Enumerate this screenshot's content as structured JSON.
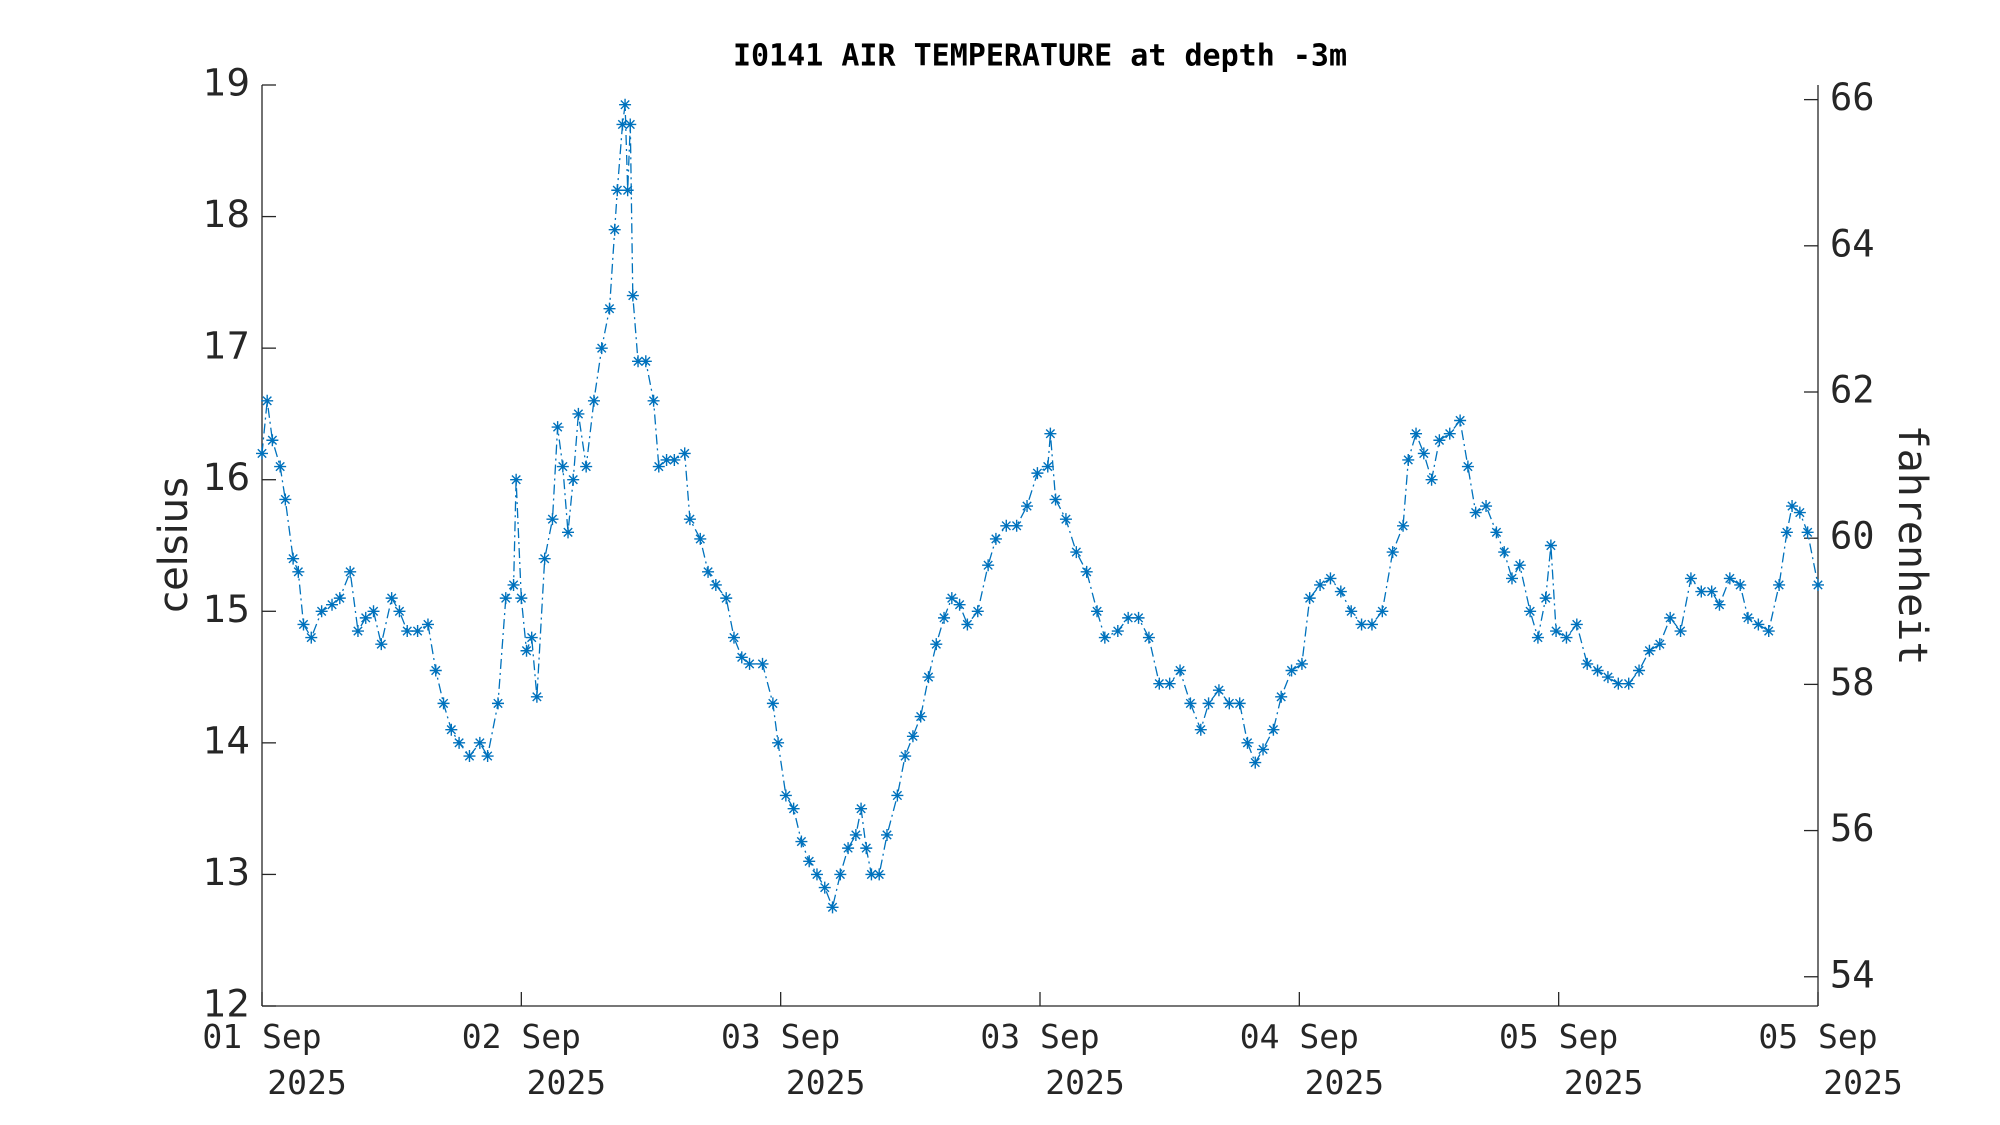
{
  "chart_data": {
    "type": "line",
    "title": "I0141 AIR TEMPERATURE at depth -3m",
    "ylabel": "celsius",
    "y2label": "fahrenheit",
    "xlim": [
      0,
      6
    ],
    "xticks": [
      {
        "value": 0,
        "label": "01 Sep\n2025"
      },
      {
        "value": 1,
        "label": "02 Sep\n2025"
      },
      {
        "value": 2,
        "label": "03 Sep\n2025"
      },
      {
        "value": 3,
        "label": "03 Sep\n2025"
      },
      {
        "value": 4,
        "label": "04 Sep\n2025"
      },
      {
        "value": 5,
        "label": "05 Sep\n2025"
      },
      {
        "value": 6,
        "label": "05 Sep\n2025"
      }
    ],
    "ylim": [
      12,
      19
    ],
    "yticks": [
      12,
      13,
      14,
      15,
      16,
      17,
      18,
      19
    ],
    "y2lim": [
      53.6,
      66.2
    ],
    "y2ticks": [
      54,
      56,
      58,
      60,
      62,
      64,
      66
    ],
    "grid": false,
    "x": [
      0,
      0.02,
      0.04,
      0.07,
      0.09,
      0.12,
      0.14,
      0.16,
      0.19,
      0.23,
      0.27,
      0.3,
      0.34,
      0.37,
      0.4,
      0.43,
      0.46,
      0.5,
      0.53,
      0.56,
      0.6,
      0.64,
      0.67,
      0.7,
      0.73,
      0.76,
      0.8,
      0.84,
      0.87,
      0.91,
      0.94,
      0.97,
      0.98,
      1.0,
      1.02,
      1.04,
      1.06,
      1.09,
      1.12,
      1.14,
      1.16,
      1.18,
      1.2,
      1.22,
      1.25,
      1.28,
      1.31,
      1.34,
      1.36,
      1.37,
      1.39,
      1.4,
      1.41,
      1.42,
      1.43,
      1.45,
      1.48,
      1.51,
      1.53,
      1.56,
      1.59,
      1.63,
      1.65,
      1.69,
      1.72,
      1.75,
      1.79,
      1.82,
      1.85,
      1.88,
      1.93,
      1.97,
      1.99,
      2.02,
      2.05,
      2.08,
      2.11,
      2.14,
      2.17,
      2.2,
      2.23,
      2.26,
      2.29,
      2.31,
      2.33,
      2.35,
      2.38,
      2.41,
      2.45,
      2.48,
      2.51,
      2.54,
      2.57,
      2.6,
      2.63,
      2.66,
      2.69,
      2.72,
      2.76,
      2.8,
      2.83,
      2.87,
      2.91,
      2.95,
      2.99,
      3.03,
      3.04,
      3.06,
      3.1,
      3.14,
      3.18,
      3.22,
      3.25,
      3.3,
      3.34,
      3.38,
      3.42,
      3.46,
      3.5,
      3.54,
      3.58,
      3.62,
      3.65,
      3.69,
      3.73,
      3.77,
      3.8,
      3.83,
      3.86,
      3.9,
      3.93,
      3.97,
      4.01,
      4.04,
      4.08,
      4.12,
      4.16,
      4.2,
      4.24,
      4.28,
      4.32,
      4.36,
      4.4,
      4.42,
      4.45,
      4.48,
      4.51,
      4.54,
      4.58,
      4.62,
      4.65,
      4.68,
      4.72,
      4.76,
      4.79,
      4.82,
      4.85,
      4.89,
      4.92,
      4.95,
      4.97,
      4.99,
      5.03,
      5.07,
      5.11,
      5.15,
      5.19,
      5.23,
      5.27,
      5.31,
      5.35,
      5.39,
      5.43,
      5.47,
      5.51,
      5.55,
      5.59,
      5.62,
      5.66,
      5.7,
      5.73,
      5.77,
      5.81,
      5.85,
      5.88,
      5.9,
      5.93,
      5.96,
      6.0
    ],
    "series": [
      {
        "color": "#0072bd",
        "values": [
          16.2,
          16.6,
          16.3,
          16.1,
          15.85,
          15.4,
          15.3,
          14.9,
          14.8,
          15.0,
          15.05,
          15.1,
          15.3,
          14.85,
          14.95,
          15.0,
          14.75,
          15.1,
          15.0,
          14.85,
          14.85,
          14.9,
          14.55,
          14.3,
          14.1,
          14.0,
          13.9,
          14.0,
          13.9,
          14.3,
          15.1,
          15.2,
          16.0,
          15.1,
          14.7,
          14.8,
          14.35,
          15.4,
          15.7,
          16.4,
          16.1,
          15.6,
          16.0,
          16.5,
          16.1,
          16.6,
          17.0,
          17.3,
          17.9,
          18.2,
          18.7,
          18.85,
          18.2,
          18.7,
          17.4,
          16.9,
          16.9,
          16.6,
          16.1,
          16.15,
          16.15,
          16.2,
          15.7,
          15.55,
          15.3,
          15.2,
          15.1,
          14.8,
          14.65,
          14.6,
          14.6,
          14.3,
          14.0,
          13.6,
          13.5,
          13.25,
          13.1,
          13.0,
          12.9,
          12.75,
          13.0,
          13.2,
          13.3,
          13.5,
          13.2,
          13.0,
          13.0,
          13.3,
          13.6,
          13.9,
          14.05,
          14.2,
          14.5,
          14.75,
          14.95,
          15.1,
          15.05,
          14.9,
          15.0,
          15.35,
          15.55,
          15.65,
          15.65,
          15.8,
          16.05,
          16.1,
          16.35,
          15.85,
          15.7,
          15.45,
          15.3,
          15.0,
          14.8,
          14.85,
          14.95,
          14.95,
          14.8,
          14.45,
          14.45,
          14.55,
          14.3,
          14.1,
          14.3,
          14.4,
          14.3,
          14.3,
          14.0,
          13.85,
          13.95,
          14.1,
          14.35,
          14.55,
          14.6,
          15.1,
          15.2,
          15.25,
          15.15,
          15.0,
          14.9,
          14.9,
          15.0,
          15.45,
          15.65,
          16.15,
          16.35,
          16.2,
          16.0,
          16.3,
          16.35,
          16.45,
          16.1,
          15.75,
          15.8,
          15.6,
          15.45,
          15.25,
          15.35,
          15.0,
          14.8,
          15.1,
          15.5,
          14.85,
          14.8,
          14.9,
          14.6,
          14.55,
          14.5,
          14.45,
          14.45,
          14.55,
          14.7,
          14.75,
          14.95,
          14.85,
          15.25,
          15.15,
          15.15,
          15.05,
          15.25,
          15.2,
          14.95,
          14.9,
          14.85,
          15.2,
          15.6,
          15.8,
          15.75,
          15.6,
          15.2
        ]
      }
    ]
  }
}
